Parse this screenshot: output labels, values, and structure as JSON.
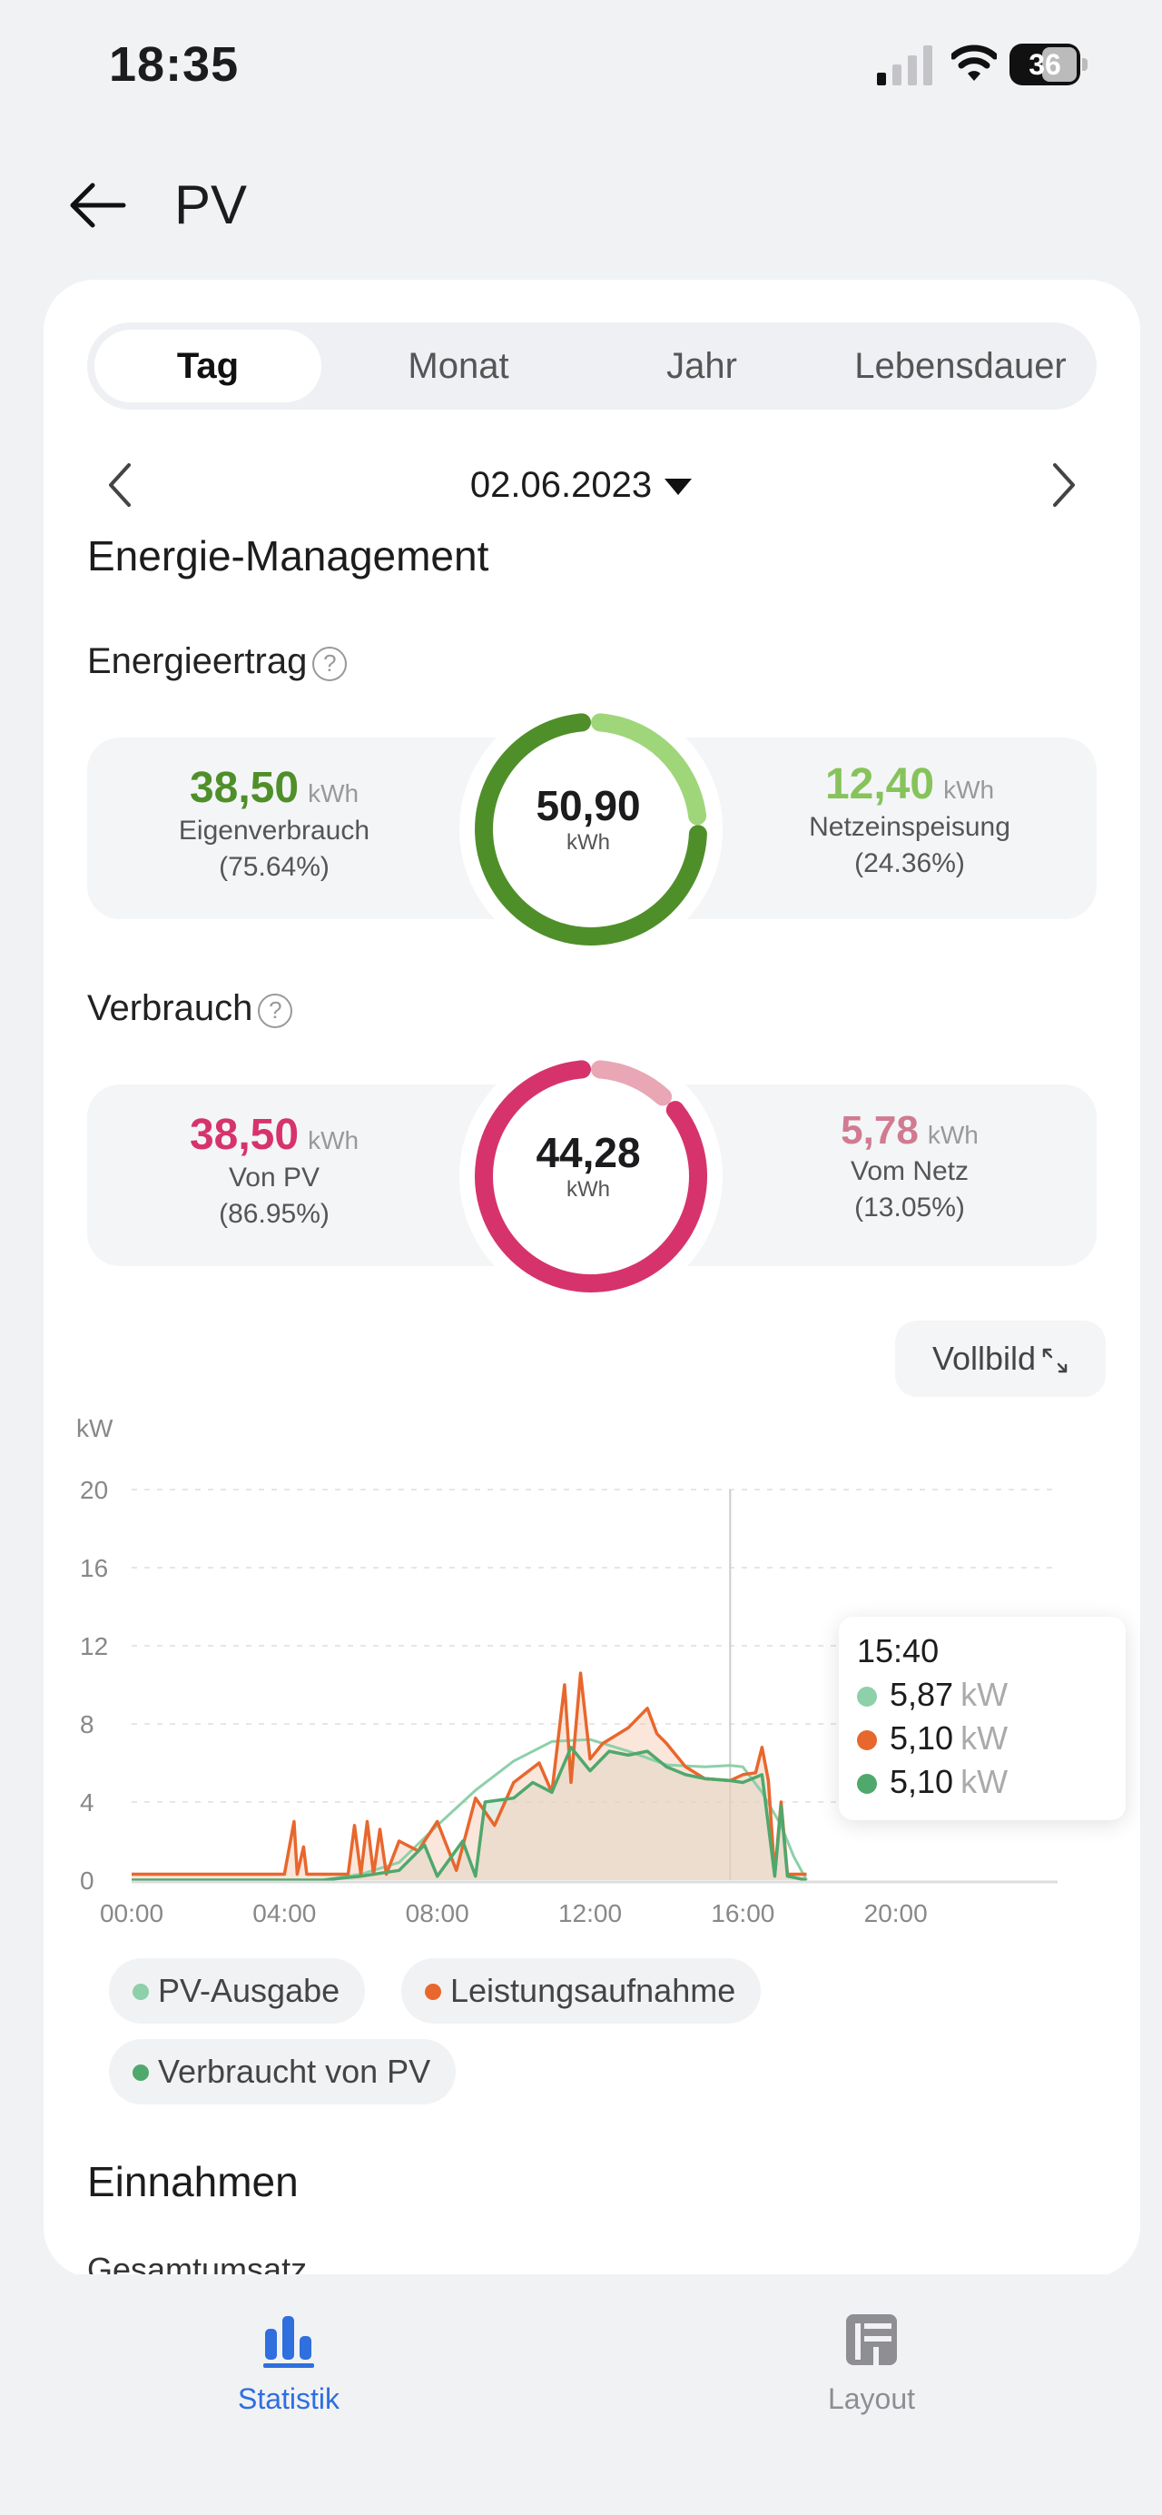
{
  "status": {
    "time": "18:35",
    "battery": "36"
  },
  "header": {
    "title": "PV"
  },
  "tabs": [
    "Tag",
    "Monat",
    "Jahr",
    "Lebensdauer"
  ],
  "active_tab": "Tag",
  "date": "02.06.2023",
  "section_energy": "Energie-Management",
  "energieertrag": {
    "title": "Energieertrag",
    "total": "50,90",
    "total_unit": "kWh",
    "left": {
      "value": "38,50",
      "unit": "kWh",
      "label": "Eigenverbrauch",
      "pct": "(75.64%)"
    },
    "right": {
      "value": "12,40",
      "unit": "kWh",
      "label": "Netzeinspeisung",
      "pct": "(24.36%)"
    },
    "colors": {
      "left": "#4f8f2a",
      "right": "#9fd67a",
      "left_text": "#4f8f2a",
      "right_text": "#86c35a"
    }
  },
  "verbrauch": {
    "title": "Verbrauch",
    "total": "44,28",
    "total_unit": "kWh",
    "left": {
      "value": "38,50",
      "unit": "kWh",
      "label": "Von PV",
      "pct": "(86.95%)"
    },
    "right": {
      "value": "5,78",
      "unit": "kWh",
      "label": "Vom Netz",
      "pct": "(13.05%)"
    },
    "colors": {
      "left": "#d6336c",
      "right": "#e9a7b6",
      "left_text": "#d6336c",
      "right_text": "#d07b91"
    }
  },
  "fullscreen_label": "Vollbild",
  "chart_data": {
    "type": "line",
    "ylabel": "kW",
    "ylim": [
      0,
      20
    ],
    "yticks": [
      "0",
      "4",
      "8",
      "12",
      "16",
      "20"
    ],
    "xticks": [
      "00:00",
      "04:00",
      "08:00",
      "12:00",
      "16:00",
      "20:00"
    ],
    "grid": true,
    "cursor": "15:40",
    "series": [
      {
        "name": "PV-Ausgabe",
        "color": "#8dd0a9",
        "points": [
          [
            "00:00",
            0
          ],
          [
            "05:00",
            0
          ],
          [
            "06:00",
            0.3
          ],
          [
            "07:00",
            0.9
          ],
          [
            "08:00",
            2.8
          ],
          [
            "09:00",
            4.6
          ],
          [
            "10:00",
            6.1
          ],
          [
            "11:00",
            7.1
          ],
          [
            "12:00",
            7.2
          ],
          [
            "13:00",
            6.6
          ],
          [
            "14:00",
            5.9
          ],
          [
            "15:00",
            5.8
          ],
          [
            "15:40",
            5.87
          ],
          [
            "16:00",
            5.8
          ],
          [
            "16:30",
            4.5
          ],
          [
            "17:00",
            2.8
          ],
          [
            "17:20",
            1.2
          ],
          [
            "17:40",
            0
          ]
        ]
      },
      {
        "name": "Leistungsaufnahme",
        "color": "#e8672d",
        "points": [
          [
            "00:00",
            0.3
          ],
          [
            "04:00",
            0.3
          ],
          [
            "04:15",
            3
          ],
          [
            "04:20",
            0.3
          ],
          [
            "04:30",
            1.7
          ],
          [
            "04:35",
            0.3
          ],
          [
            "05:40",
            0.3
          ],
          [
            "05:50",
            2.8
          ],
          [
            "06:00",
            0.3
          ],
          [
            "06:10",
            3
          ],
          [
            "06:20",
            0.3
          ],
          [
            "06:30",
            2.6
          ],
          [
            "06:40",
            0.3
          ],
          [
            "07:00",
            2
          ],
          [
            "07:30",
            1.5
          ],
          [
            "08:00",
            3
          ],
          [
            "08:30",
            0.5
          ],
          [
            "09:00",
            4.2
          ],
          [
            "09:30",
            2.8
          ],
          [
            "10:00",
            5
          ],
          [
            "10:40",
            6
          ],
          [
            "11:00",
            4.5
          ],
          [
            "11:20",
            10
          ],
          [
            "11:30",
            5
          ],
          [
            "11:45",
            10.6
          ],
          [
            "12:00",
            6.2
          ],
          [
            "12:20",
            7
          ],
          [
            "13:00",
            7.8
          ],
          [
            "13:30",
            8.8
          ],
          [
            "13:45",
            7.5
          ],
          [
            "14:00",
            7
          ],
          [
            "14:30",
            5.8
          ],
          [
            "15:00",
            5.2
          ],
          [
            "15:40",
            5.1
          ],
          [
            "16:00",
            5.4
          ],
          [
            "16:20",
            5.5
          ],
          [
            "16:30",
            6.8
          ],
          [
            "16:40",
            5.1
          ],
          [
            "16:50",
            0.3
          ],
          [
            "17:00",
            4
          ],
          [
            "17:10",
            0.3
          ],
          [
            "17:40",
            0.3
          ]
        ]
      },
      {
        "name": "Verbraucht von PV",
        "color": "#4fa86c",
        "points": [
          [
            "00:00",
            0
          ],
          [
            "05:00",
            0
          ],
          [
            "06:00",
            0.2
          ],
          [
            "07:00",
            0.5
          ],
          [
            "07:40",
            1.8
          ],
          [
            "08:00",
            0.2
          ],
          [
            "08:40",
            2
          ],
          [
            "09:00",
            0.2
          ],
          [
            "09:15",
            4
          ],
          [
            "10:00",
            4.2
          ],
          [
            "10:30",
            5
          ],
          [
            "11:00",
            4.5
          ],
          [
            "11:30",
            6.8
          ],
          [
            "12:00",
            5.6
          ],
          [
            "12:30",
            6.6
          ],
          [
            "13:00",
            6.4
          ],
          [
            "13:30",
            6.6
          ],
          [
            "14:00",
            5.8
          ],
          [
            "14:30",
            5.4
          ],
          [
            "15:00",
            5.2
          ],
          [
            "15:40",
            5.1
          ],
          [
            "16:00",
            5
          ],
          [
            "16:30",
            5.4
          ],
          [
            "16:50",
            0.2
          ],
          [
            "17:00",
            3.8
          ],
          [
            "17:10",
            0.2
          ],
          [
            "17:40",
            0
          ]
        ]
      }
    ]
  },
  "tooltip": {
    "time": "15:40",
    "rows": [
      {
        "value": "5,87",
        "unit": "kW",
        "color": "#8dd0a9"
      },
      {
        "value": "5,10",
        "unit": "kW",
        "color": "#e8672d"
      },
      {
        "value": "5,10",
        "unit": "kW",
        "color": "#4fa86c"
      }
    ]
  },
  "legend": [
    {
      "label": "PV-Ausgabe",
      "color": "#8dd0a9"
    },
    {
      "label": "Leistungsaufnahme",
      "color": "#e8672d"
    },
    {
      "label": "Verbraucht von PV",
      "color": "#4fa86c"
    }
  ],
  "section_income": "Einnahmen",
  "section_total": "Gesamtumsatz",
  "nav": [
    {
      "label": "Statistik",
      "active": true,
      "color": "#2f6fde"
    },
    {
      "label": "Layout",
      "active": false,
      "color": "#8e8e93"
    }
  ]
}
